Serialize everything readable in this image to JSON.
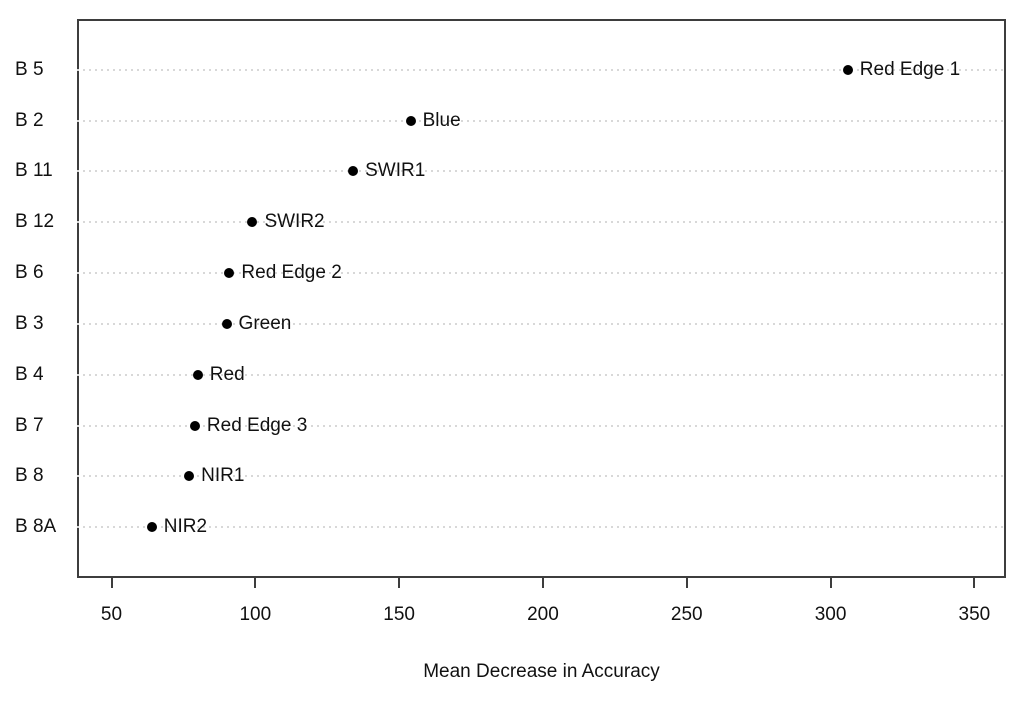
{
  "chart_data": {
    "type": "scatter",
    "subtype": "dotchart",
    "title": "",
    "xlabel": "Mean Decrease in Accuracy",
    "ylabel": "",
    "xlim": [
      38,
      361
    ],
    "x_ticks": [
      50,
      100,
      150,
      200,
      250,
      300,
      350
    ],
    "grid": "dotted horizontal lines, one per category",
    "legend": "none",
    "categories": [
      "B 5",
      "B 2",
      "B 11",
      "B 12",
      "B 6",
      "B 3",
      "B 4",
      "B 7",
      "B 8",
      "B 8A"
    ],
    "points": [
      {
        "band": "B 5",
        "label": "Red Edge 1",
        "value": 306
      },
      {
        "band": "B 2",
        "label": "Blue",
        "value": 154
      },
      {
        "band": "B 11",
        "label": "SWIR1",
        "value": 134
      },
      {
        "band": "B 12",
        "label": "SWIR2",
        "value": 99
      },
      {
        "band": "B 6",
        "label": "Red Edge 2",
        "value": 91
      },
      {
        "band": "B 3",
        "label": "Green",
        "value": 90
      },
      {
        "band": "B 4",
        "label": "Red",
        "value": 80
      },
      {
        "band": "B 7",
        "label": "Red Edge 3",
        "value": 79
      },
      {
        "band": "B 8",
        "label": "NIR1",
        "value": 77
      },
      {
        "band": "B 8A",
        "label": "NIR2",
        "value": 64
      }
    ],
    "colors": {
      "point": "#000000",
      "grid": "#d8d8d8",
      "box": "#3d3d3d",
      "text": "#111111",
      "background": "#ffffff"
    }
  }
}
